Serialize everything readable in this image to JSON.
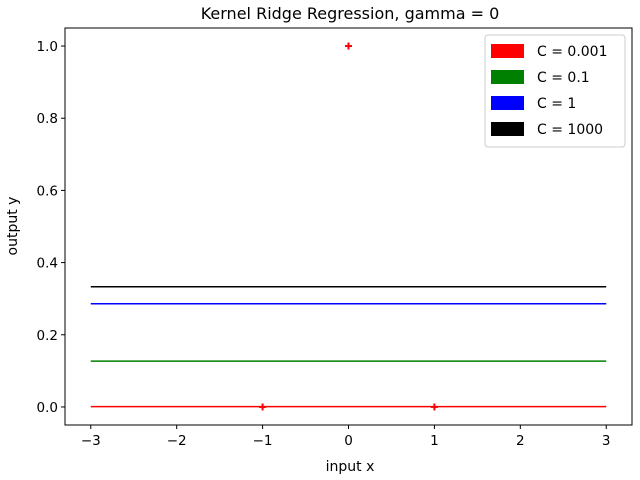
{
  "chart_data": {
    "type": "line",
    "title": "Kernel Ridge Regression, gamma = 0",
    "xlabel": "input x",
    "ylabel": "output y",
    "xlim": [
      -3.3,
      3.3
    ],
    "ylim": [
      -0.05,
      1.05
    ],
    "xticks": [
      -3,
      -2,
      -1,
      0,
      1,
      2,
      3
    ],
    "xtick_labels": [
      "−3",
      "−2",
      "−1",
      "0",
      "1",
      "2",
      "3"
    ],
    "yticks": [
      0.0,
      0.2,
      0.4,
      0.6,
      0.8,
      1.0
    ],
    "ytick_labels": [
      "0.0",
      "0.2",
      "0.4",
      "0.6",
      "0.8",
      "1.0"
    ],
    "grid": false,
    "legend_position": "top-right",
    "series": [
      {
        "name": "C = 0.001",
        "color": "#ff0000",
        "x": [
          -3,
          3
        ],
        "y": [
          0.001,
          0.001
        ]
      },
      {
        "name": "C = 0.1",
        "color": "#008000",
        "x": [
          -3,
          3
        ],
        "y": [
          0.127,
          0.127
        ]
      },
      {
        "name": "C = 1",
        "color": "#0000ff",
        "x": [
          -3,
          3
        ],
        "y": [
          0.286,
          0.286
        ]
      },
      {
        "name": "C = 1000",
        "color": "#000000",
        "x": [
          -3,
          3
        ],
        "y": [
          0.333,
          0.333
        ]
      }
    ],
    "points": {
      "marker": "plus",
      "color": "#ff0000",
      "x": [
        -1,
        0,
        1
      ],
      "y": [
        0,
        1,
        0
      ]
    }
  }
}
